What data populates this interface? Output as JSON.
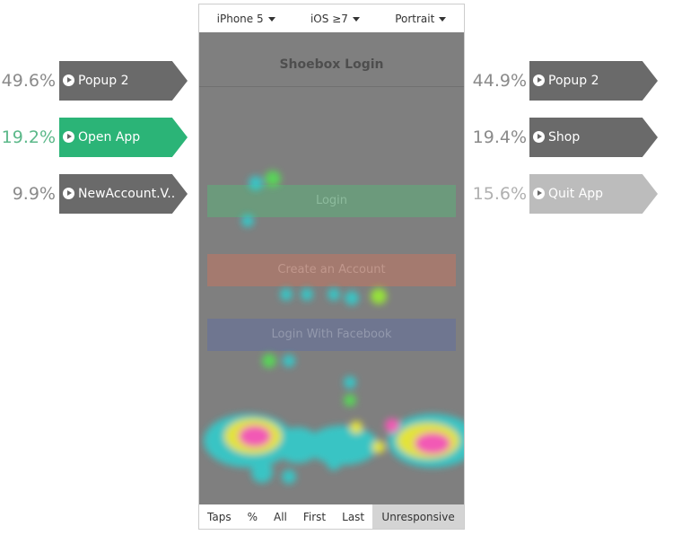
{
  "device_bar": {
    "device": "iPhone 5",
    "os": "iOS ≥7",
    "orientation": "Portrait"
  },
  "screen": {
    "title": "Shoebox Login",
    "buttons": [
      "Login",
      "Create an Account",
      "Login With Facebook"
    ]
  },
  "incoming": [
    {
      "percent": "49.6%",
      "label": "Popup 2"
    },
    {
      "percent": "19.2%",
      "label": "Open App"
    },
    {
      "percent": "9.9%",
      "label": "NewAccount.V.."
    }
  ],
  "outgoing": [
    {
      "percent": "44.9%",
      "label": "Popup 2"
    },
    {
      "percent": "19.4%",
      "label": "Shop"
    },
    {
      "percent": "15.6%",
      "label": "Quit App"
    }
  ],
  "toolbar": [
    "Taps",
    "%",
    "All",
    "First",
    "Last",
    "Unresponsive"
  ]
}
